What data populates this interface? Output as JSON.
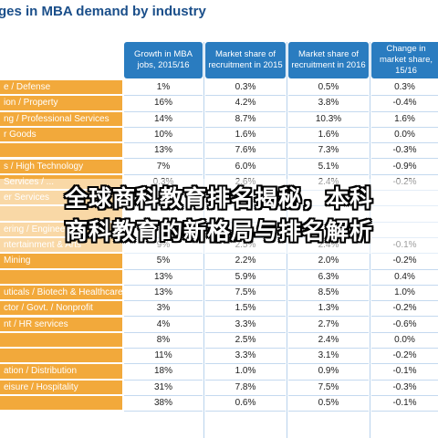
{
  "chart_data": {
    "type": "table",
    "title": "ges in MBA demand by industry",
    "columns": [
      "Growth in MBA jobs, 2015/16",
      "Market share of recruitment in 2015",
      "Market share of recruitment in 2016",
      "Change in market share, 15/16"
    ],
    "rows": [
      {
        "label": "e / Defense",
        "values": [
          "1%",
          "0.3%",
          "0.5%",
          "0.3%"
        ]
      },
      {
        "label": "ion / Property",
        "values": [
          "16%",
          "4.2%",
          "3.8%",
          "-0.4%"
        ]
      },
      {
        "label": "ng / Professional Services",
        "values": [
          "14%",
          "8.7%",
          "10.3%",
          "1.6%"
        ]
      },
      {
        "label": "r Goods",
        "values": [
          "10%",
          "1.6%",
          "1.6%",
          "0.0%"
        ]
      },
      {
        "label": "",
        "values": [
          "13%",
          "7.6%",
          "7.3%",
          "-0.3%"
        ]
      },
      {
        "label": "s / High Technology",
        "values": [
          "7%",
          "6.0%",
          "5.1%",
          "-0.9%"
        ]
      },
      {
        "label": "Services / ...",
        "values": [
          "0.3%",
          "2.6%",
          "2.4%",
          "-0.2%"
        ]
      },
      {
        "label": "er Services",
        "values": [
          "",
          "",
          "",
          ""
        ]
      },
      {
        "label": "",
        "values": [
          "",
          "",
          "",
          ""
        ]
      },
      {
        "label": "ering / Engineering",
        "values": [
          "",
          "",
          "",
          ""
        ]
      },
      {
        "label": "ntertainment & Arts",
        "values": [
          "9%",
          "2.5%",
          "2.4%",
          "-0.1%"
        ]
      },
      {
        "label": "Mining",
        "values": [
          "5%",
          "2.2%",
          "2.0%",
          "-0.2%"
        ]
      },
      {
        "label": "",
        "values": [
          "13%",
          "5.9%",
          "6.3%",
          "0.4%"
        ]
      },
      {
        "label": "uticals / Biotech & Healthcare",
        "values": [
          "13%",
          "7.5%",
          "8.5%",
          "1.0%"
        ]
      },
      {
        "label": "ctor / Govt. / Nonprofit",
        "values": [
          "3%",
          "1.5%",
          "1.3%",
          "-0.2%"
        ]
      },
      {
        "label": "nt / HR services",
        "values": [
          "4%",
          "3.3%",
          "2.7%",
          "-0.6%"
        ]
      },
      {
        "label": "",
        "values": [
          "8%",
          "2.5%",
          "2.4%",
          "0.0%"
        ]
      },
      {
        "label": "",
        "values": [
          "11%",
          "3.3%",
          "3.1%",
          "-0.2%"
        ]
      },
      {
        "label": "ation / Distribution",
        "values": [
          "18%",
          "1.0%",
          "0.9%",
          "-0.1%"
        ]
      },
      {
        "label": "eisure / Hospitality",
        "values": [
          "31%",
          "7.8%",
          "7.5%",
          "-0.3%"
        ]
      },
      {
        "label": "",
        "values": [
          "38%",
          "0.6%",
          "0.5%",
          "-0.1%"
        ]
      }
    ]
  },
  "banner": {
    "line1": "全球商科教育排名揭秘，本科",
    "line2": "商科教育的新格局与排名解析"
  }
}
